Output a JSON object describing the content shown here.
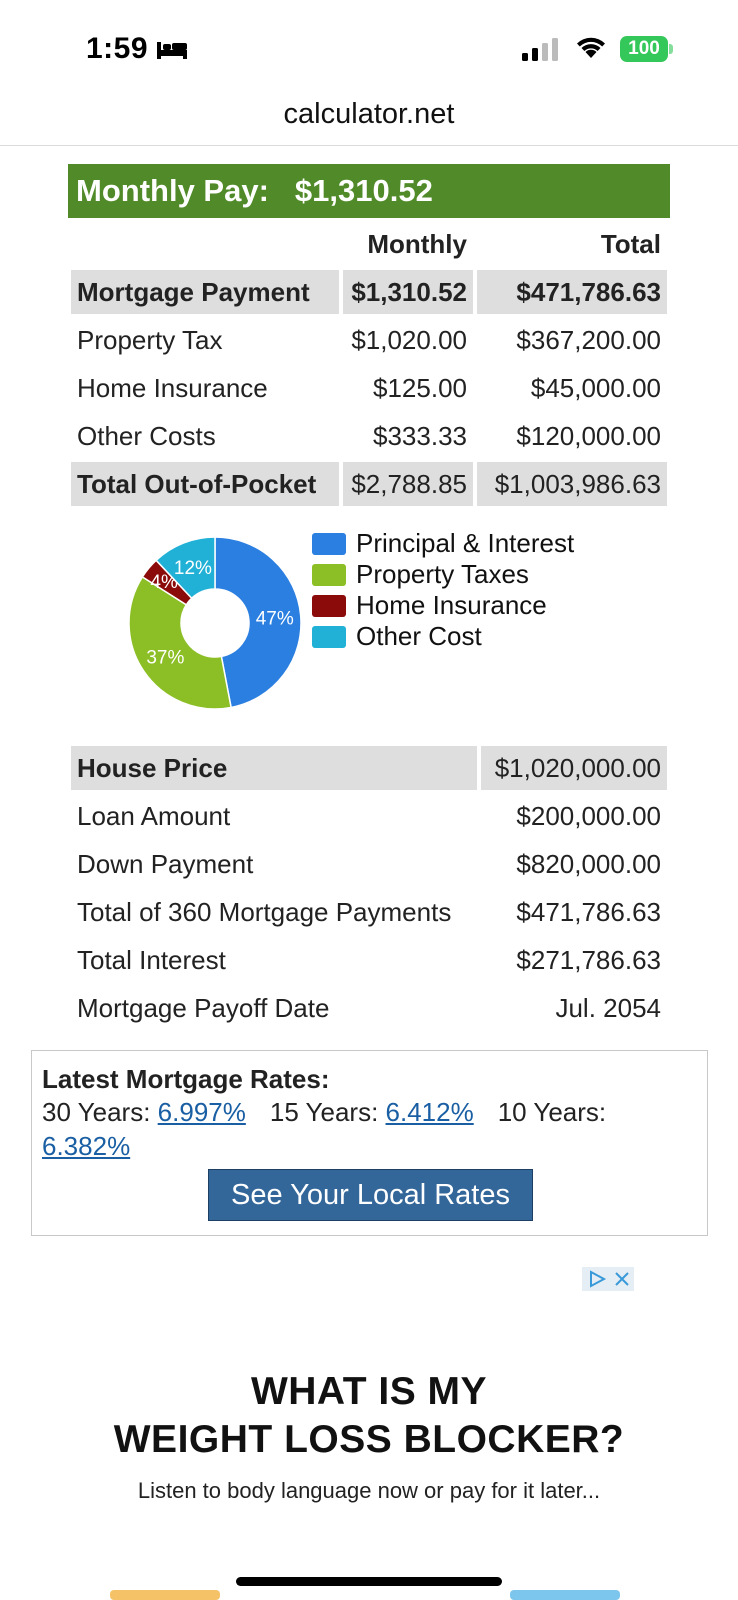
{
  "status_bar": {
    "time": "1:59",
    "battery": "100"
  },
  "browser": {
    "url": "calculator.net"
  },
  "monthly_pay": {
    "label": "Monthly Pay:",
    "value": "$1,310.52"
  },
  "payment_table": {
    "headers": [
      "",
      "Monthly",
      "Total"
    ],
    "rows": [
      {
        "label": "Mortgage Payment",
        "monthly": "$1,310.52",
        "total": "$471,786.63"
      },
      {
        "label": "Property Tax",
        "monthly": "$1,020.00",
        "total": "$367,200.00"
      },
      {
        "label": "Home Insurance",
        "monthly": "$125.00",
        "total": "$45,000.00"
      },
      {
        "label": "Other Costs",
        "monthly": "$333.33",
        "total": "$120,000.00"
      },
      {
        "label": "Total Out-of-Pocket",
        "monthly": "$2,788.85",
        "total": "$1,003,986.63"
      }
    ]
  },
  "chart_data": {
    "type": "pie",
    "categories": [
      "Principal & Interest",
      "Property Taxes",
      "Home Insurance",
      "Other Cost"
    ],
    "values": [
      47,
      37,
      4,
      12
    ],
    "labels": [
      "47%",
      "37%",
      "4%",
      "12%"
    ],
    "colors": [
      "#2b7fe0",
      "#8cbf26",
      "#8b0a0a",
      "#21b1d6"
    ],
    "donut": true,
    "legend_position": "right"
  },
  "summary_table": {
    "rows": [
      {
        "label": "House Price",
        "value": "$1,020,000.00"
      },
      {
        "label": "Loan Amount",
        "value": "$200,000.00"
      },
      {
        "label": "Down Payment",
        "value": "$820,000.00"
      },
      {
        "label": "Total of 360 Mortgage Payments",
        "value": "$471,786.63"
      },
      {
        "label": "Total Interest",
        "value": "$271,786.63"
      },
      {
        "label": "Mortgage Payoff Date",
        "value": "Jul. 2054"
      }
    ]
  },
  "rates": {
    "title": "Latest Mortgage Rates:",
    "items": [
      {
        "label": "30 Years:",
        "value": "6.997%"
      },
      {
        "label": "15 Years:",
        "value": "6.412%"
      },
      {
        "label": "10 Years:",
        "value": "6.382%"
      }
    ],
    "button": "See Your Local Rates"
  },
  "ad": {
    "headline_1": "WHAT IS MY",
    "headline_2": "WEIGHT LOSS BLOCKER?",
    "subtext": "Listen to body language now or pay for it later..."
  },
  "colors": {
    "banner": "#518a28",
    "link": "#1a5fa3",
    "button": "#336699"
  }
}
